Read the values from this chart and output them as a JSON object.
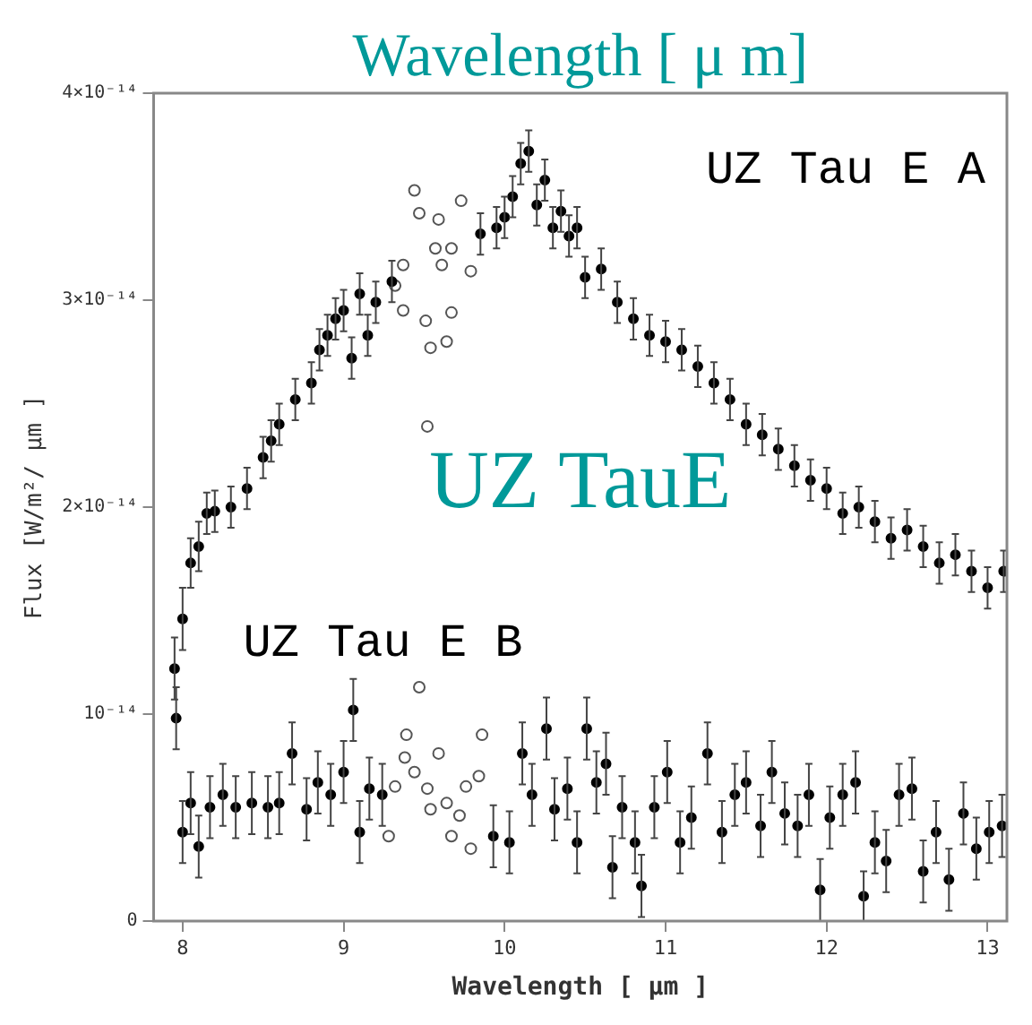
{
  "chart_data": {
    "type": "scatter",
    "xlabel": "Wavelength [ μm ]",
    "ylabel": "Flux [W/m²/ μm ]",
    "annotations": [
      "Wavelength [ μ m]",
      "UZ TauE"
    ],
    "xlim": [
      7.82,
      13.12
    ],
    "xticks": [
      8,
      9,
      10,
      11,
      12,
      13
    ],
    "ylim": [
      0,
      4e-14
    ],
    "yticks": [
      {
        "value": 0,
        "label": "0"
      },
      {
        "value": 1e-14,
        "label": "10⁻¹⁴"
      },
      {
        "value": 2e-14,
        "label": "2×10⁻¹⁴"
      },
      {
        "value": 3e-14,
        "label": "3×10⁻¹⁴"
      },
      {
        "value": 4e-14,
        "label": "4×10⁻¹⁴"
      }
    ],
    "marker": "circle",
    "grid": false,
    "legend": false,
    "series": [
      {
        "name": "UZ Tau E A",
        "color": "#000000",
        "x": [
          7.95,
          8.0,
          8.05,
          8.1,
          8.15,
          8.2,
          8.3,
          8.4,
          8.5,
          8.55,
          8.6,
          8.7,
          8.8,
          8.85,
          8.9,
          8.95,
          9.0,
          9.05,
          9.1,
          9.15,
          9.2,
          9.3,
          9.85,
          9.95,
          10.0,
          10.05,
          10.1,
          10.15,
          10.2,
          10.25,
          10.3,
          10.35,
          10.4,
          10.45,
          10.5,
          10.6,
          10.7,
          10.8,
          10.9,
          11.0,
          11.1,
          11.2,
          11.3,
          11.4,
          11.5,
          11.6,
          11.7,
          11.8,
          11.9,
          12.0,
          12.1,
          12.2,
          12.3,
          12.4,
          12.5,
          12.6,
          12.7,
          12.8,
          12.9,
          13.0,
          13.1
        ],
        "values": [
          1.22e-14,
          1.46e-14,
          1.73e-14,
          1.81e-14,
          1.97e-14,
          1.98e-14,
          2e-14,
          2.09e-14,
          2.24e-14,
          2.32e-14,
          2.4e-14,
          2.52e-14,
          2.6e-14,
          2.76e-14,
          2.83e-14,
          2.91e-14,
          2.95e-14,
          2.72e-14,
          3.03e-14,
          2.83e-14,
          2.99e-14,
          3.09e-14,
          3.32e-14,
          3.35e-14,
          3.4e-14,
          3.5e-14,
          3.66e-14,
          3.72e-14,
          3.46e-14,
          3.58e-14,
          3.35e-14,
          3.43e-14,
          3.31e-14,
          3.35e-14,
          3.11e-14,
          3.15e-14,
          2.99e-14,
          2.91e-14,
          2.83e-14,
          2.8e-14,
          2.76e-14,
          2.68e-14,
          2.6e-14,
          2.52e-14,
          2.4e-14,
          2.35e-14,
          2.28e-14,
          2.2e-14,
          2.13e-14,
          2.09e-14,
          1.97e-14,
          2e-14,
          1.93e-14,
          1.85e-14,
          1.89e-14,
          1.81e-14,
          1.73e-14,
          1.77e-14,
          1.69e-14,
          1.61e-14,
          1.69e-14
        ],
        "errors": [
          1.5e-15,
          1.5e-15,
          1.2e-15,
          1.2e-15,
          1e-15,
          1e-15,
          1e-15,
          1e-15,
          1e-15,
          1e-15,
          1e-15,
          1e-15,
          1e-15,
          1e-15,
          1e-15,
          1e-15,
          1e-15,
          1e-15,
          1e-15,
          1e-15,
          1e-15,
          1e-15,
          1e-15,
          1e-15,
          1e-15,
          1e-15,
          1e-15,
          1e-15,
          1e-15,
          1e-15,
          1e-15,
          1e-15,
          1e-15,
          1e-15,
          1e-15,
          1e-15,
          1e-15,
          1e-15,
          1e-15,
          1e-15,
          1e-15,
          1e-15,
          1e-15,
          1e-15,
          1e-15,
          1e-15,
          1e-15,
          1e-15,
          1e-15,
          1e-15,
          1e-15,
          1e-15,
          1e-15,
          1e-15,
          1e-15,
          1e-15,
          1e-15,
          1e-15,
          1e-15,
          1e-15,
          1e-15
        ]
      },
      {
        "color": "#555555",
        "x": [
          9.32,
          9.37,
          9.37,
          9.44,
          9.47,
          9.51,
          9.52,
          9.54,
          9.57,
          9.59,
          9.61,
          9.64,
          9.67,
          9.67,
          9.73,
          9.79
        ],
        "values": [
          3.07e-14,
          3.17e-14,
          2.95e-14,
          3.53e-14,
          3.42e-14,
          2.9e-14,
          2.39e-14,
          2.77e-14,
          3.25e-14,
          3.39e-14,
          3.17e-14,
          2.8e-14,
          3.25e-14,
          2.94e-14,
          3.48e-14,
          3.14e-14
        ]
      },
      {
        "name": "UZ Tau E B",
        "color": "#000000",
        "x": [
          7.96,
          8.0,
          8.05,
          8.1,
          8.17,
          8.25,
          8.33,
          8.43,
          8.53,
          8.6,
          8.68,
          8.77,
          8.84,
          8.92,
          9.0,
          9.06,
          9.1,
          9.16,
          9.24,
          9.93,
          10.03,
          10.11,
          10.17,
          10.26,
          10.31,
          10.39,
          10.45,
          10.51,
          10.57,
          10.63,
          10.67,
          10.73,
          10.81,
          10.85,
          10.93,
          11.01,
          11.09,
          11.16,
          11.26,
          11.35,
          11.43,
          11.5,
          11.59,
          11.66,
          11.74,
          11.82,
          11.89,
          11.96,
          12.02,
          12.1,
          12.18,
          12.23,
          12.3,
          12.37,
          12.45,
          12.53,
          12.6,
          12.68,
          12.76,
          12.85,
          12.93,
          13.01,
          13.09
        ],
        "values": [
          9.8e-15,
          4.3e-15,
          5.7e-15,
          3.6e-15,
          5.5e-15,
          6.1e-15,
          5.5e-15,
          5.7e-15,
          5.5e-15,
          5.7e-15,
          8.1e-15,
          5.4e-15,
          6.7e-15,
          6.1e-15,
          7.2e-15,
          1.02e-14,
          4.3e-15,
          6.4e-15,
          6.1e-15,
          4.1e-15,
          3.8e-15,
          8.1e-15,
          6.1e-15,
          9.3e-15,
          5.4e-15,
          6.4e-15,
          3.8e-15,
          9.3e-15,
          6.7e-15,
          7.6e-15,
          2.6e-15,
          5.5e-15,
          3.8e-15,
          1.7e-15,
          5.5e-15,
          7.2e-15,
          3.8e-15,
          5e-15,
          8.1e-15,
          4.3e-15,
          6.1e-15,
          6.7e-15,
          4.6e-15,
          7.2e-15,
          5.2e-15,
          4.6e-15,
          6.1e-15,
          1.5e-15,
          5e-15,
          6.1e-15,
          6.7e-15,
          1.2e-15,
          3.8e-15,
          2.9e-15,
          6.1e-15,
          6.4e-15,
          2.4e-15,
          4.3e-15,
          2e-15,
          5.2e-15,
          3.5e-15,
          4.3e-15,
          4.6e-15
        ],
        "errors": [
          1.5e-15,
          1.5e-15,
          1.5e-15,
          1.5e-15,
          1.5e-15,
          1.5e-15,
          1.5e-15,
          1.5e-15,
          1.5e-15,
          1.5e-15,
          1.5e-15,
          1.5e-15,
          1.5e-15,
          1.5e-15,
          1.5e-15,
          1.5e-15,
          1.5e-15,
          1.5e-15,
          1.5e-15,
          1.5e-15,
          1.5e-15,
          1.5e-15,
          1.5e-15,
          1.5e-15,
          1.5e-15,
          1.5e-15,
          1.5e-15,
          1.5e-15,
          1.5e-15,
          1.5e-15,
          1.5e-15,
          1.5e-15,
          1.5e-15,
          1.5e-15,
          1.5e-15,
          1.5e-15,
          1.5e-15,
          1.5e-15,
          1.5e-15,
          1.5e-15,
          1.5e-15,
          1.5e-15,
          1.5e-15,
          1.5e-15,
          1.5e-15,
          1.5e-15,
          1.5e-15,
          1.5e-15,
          1.5e-15,
          1.5e-15,
          1.5e-15,
          1.2e-15,
          1.5e-15,
          1.5e-15,
          1.5e-15,
          1.5e-15,
          1.5e-15,
          1.5e-15,
          1.5e-15,
          1.5e-15,
          1.5e-15,
          1.5e-15,
          1.5e-15
        ]
      },
      {
        "color": "#555555",
        "x": [
          9.28,
          9.32,
          9.38,
          9.39,
          9.44,
          9.47,
          9.52,
          9.54,
          9.59,
          9.64,
          9.67,
          9.72,
          9.76,
          9.79,
          9.84,
          9.86
        ],
        "values": [
          4.1e-15,
          6.5e-15,
          7.9e-15,
          9e-15,
          7.2e-15,
          1.13e-14,
          6.4e-15,
          5.4e-15,
          8.1e-15,
          5.7e-15,
          4.1e-15,
          5.1e-15,
          6.5e-15,
          3.5e-15,
          7e-15,
          9e-15
        ]
      }
    ]
  }
}
